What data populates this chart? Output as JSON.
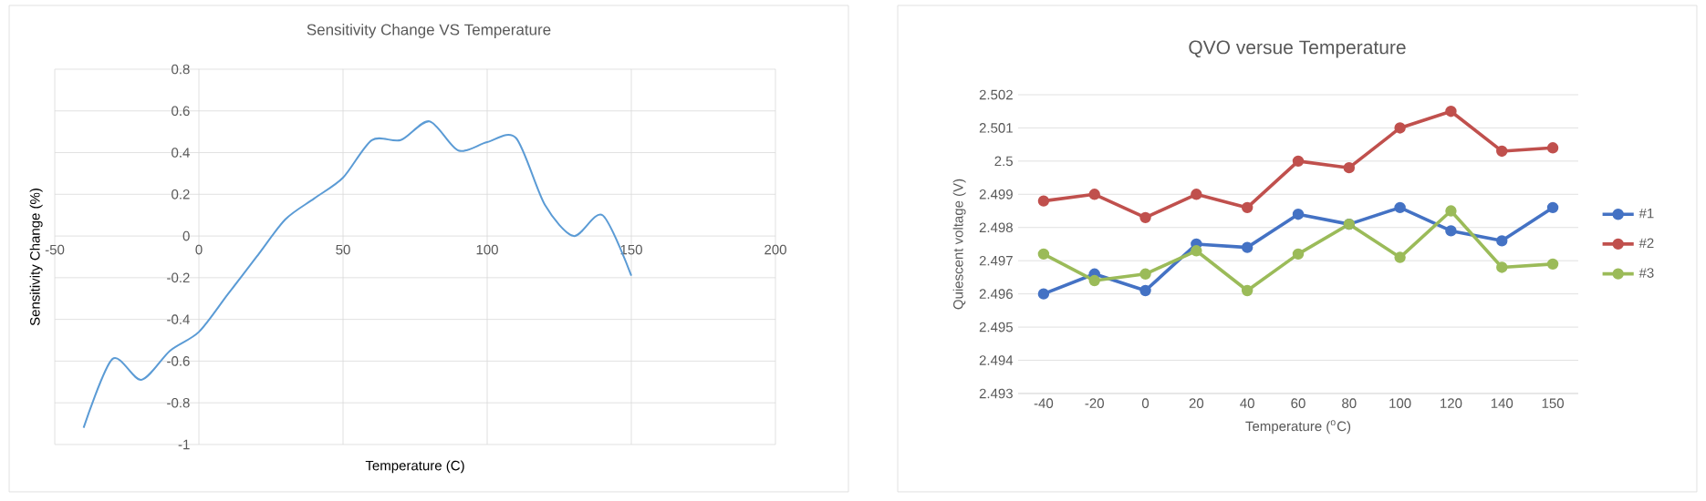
{
  "chart_data": [
    {
      "type": "line",
      "title": "Sensitivity Change VS Temperature",
      "xlabel": "Temperature (C)",
      "ylabel": "Sensitivity Change  (%)",
      "x": [
        -40,
        -30,
        -20,
        -10,
        0,
        10,
        20,
        30,
        40,
        50,
        60,
        70,
        80,
        90,
        100,
        110,
        120,
        130,
        140,
        150
      ],
      "series": [
        {
          "color": "#5b9bd5",
          "values": [
            -0.92,
            -0.59,
            -0.69,
            -0.55,
            -0.46,
            -0.28,
            -0.1,
            0.08,
            0.18,
            0.28,
            0.46,
            0.46,
            0.55,
            0.41,
            0.45,
            0.47,
            0.15,
            0.0,
            0.1,
            -0.19
          ]
        }
      ],
      "xlim": [
        -50,
        200
      ],
      "xticks": [
        -50,
        0,
        50,
        100,
        150,
        200
      ],
      "ylim": [
        -1,
        0.8
      ],
      "yticks": [
        -1,
        -0.8,
        -0.6,
        -0.4,
        -0.2,
        0,
        0.2,
        0.4,
        0.6,
        0.8
      ],
      "grid": true,
      "marker": "none"
    },
    {
      "type": "line",
      "title": "QVO versue Temperature",
      "xlabel": "Temperature ($^{o}$C)",
      "ylabel": "Quiescent voltage (V)",
      "categories": [
        "-40",
        "-20",
        "0",
        "20",
        "40",
        "60",
        "80",
        "100",
        "120",
        "140",
        "150"
      ],
      "series": [
        {
          "name": "#1",
          "color": "#4472c4",
          "values": [
            2.496,
            2.4966,
            2.4961,
            2.4975,
            2.4974,
            2.4984,
            2.4981,
            2.4986,
            2.4979,
            2.4976,
            2.4986
          ]
        },
        {
          "name": "#2",
          "color": "#c0504d",
          "values": [
            2.4988,
            2.499,
            2.4983,
            2.499,
            2.4986,
            2.5,
            2.4998,
            2.501,
            2.5015,
            2.5003,
            2.5004
          ]
        },
        {
          "name": "#3",
          "color": "#9bbb59",
          "values": [
            2.4972,
            2.4964,
            2.4966,
            2.4973,
            2.4961,
            2.4972,
            2.4981,
            2.4971,
            2.4985,
            2.4968,
            2.4969
          ]
        }
      ],
      "ylim": [
        2.493,
        2.502
      ],
      "yticks": [
        2.493,
        2.494,
        2.495,
        2.496,
        2.497,
        2.498,
        2.499,
        2.5,
        2.501,
        2.502
      ],
      "grid": "y",
      "legend": "right",
      "marker": "circle"
    }
  ]
}
